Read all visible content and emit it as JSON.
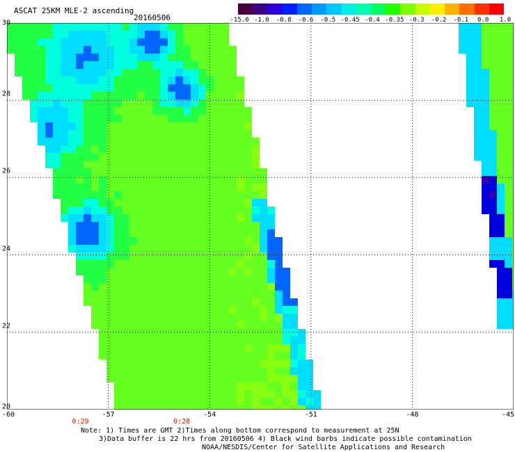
{
  "header": {
    "title": "ASCAT 25KM MLE-2 ascending",
    "date": "20160506"
  },
  "colorbar": {
    "colors": [
      "#4a0040",
      "#3a008a",
      "#2e00d8",
      "#0020ff",
      "#0064ff",
      "#0098ff",
      "#00c8ff",
      "#00f0e8",
      "#00ffb0",
      "#00ff60",
      "#20ff00",
      "#80ff00",
      "#c8ff00",
      "#fff000",
      "#ffb000",
      "#ff7000",
      "#ff3000",
      "#ff0000"
    ],
    "tick_labels": [
      "-15.0",
      "-1.0",
      "-0.8",
      "-0.6",
      "-0.5",
      "-0.45",
      "-0.4",
      "-0.35",
      "-0.3",
      "-0.2",
      "-0.1",
      "0.0",
      "1.0"
    ]
  },
  "map": {
    "lon_range": [
      -60,
      -45
    ],
    "lat_range": [
      20,
      30
    ],
    "lat_ticks": [
      "30",
      "28",
      "26",
      "24",
      "22",
      "20"
    ],
    "lon_ticks": [
      "-60",
      "-57",
      "-54",
      "-51",
      "-48",
      "-45"
    ],
    "swath_colors": {
      "base": "#66ff22",
      "light": "#88ff11",
      "green": "#22ff44",
      "cyan": "#00ffdd",
      "lightblue": "#00ddff",
      "blue": "#0066ff",
      "darkblue": "#0000dd",
      "violet": "#3300aa"
    }
  },
  "time_labels": [
    {
      "lon": -57,
      "text": "0:29"
    },
    {
      "lon": -54,
      "text": "0:28"
    }
  ],
  "notes": {
    "line1": "Note: 1) Times are GMT 2)Times along bottom correspond to measurement at 25N",
    "line2": "3)Data buffer is 22 hrs from 20160506 4) Black wind barbs indicate possible contamination",
    "line3": "NOAA/NESDIS/Center for Satellite Applications and Research"
  }
}
